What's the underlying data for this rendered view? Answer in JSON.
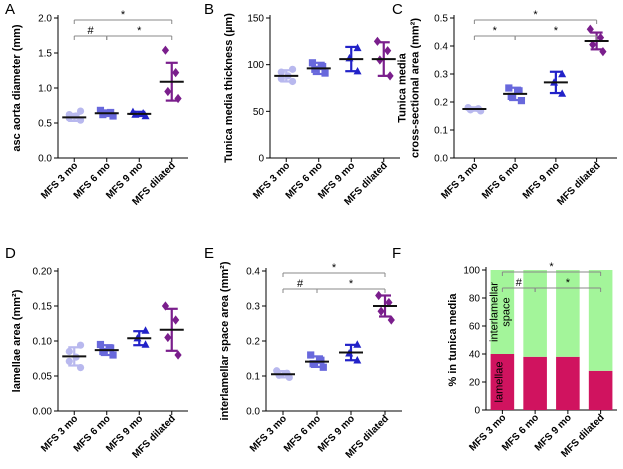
{
  "figure": {
    "categories": [
      "MFS 3 mo",
      "MFS 6 mo",
      "MFS 9 mo",
      "MFS dilated"
    ],
    "colors": [
      "#b8b8ee",
      "#6868dc",
      "#2222c8",
      "#7a1e8c"
    ],
    "markers": [
      "circle",
      "square",
      "triangle-up",
      "diamond"
    ]
  },
  "chart_data": [
    {
      "panel_letter": "A",
      "type": "scatter",
      "title": "",
      "ylabel": "asc aorta diameter (mm)",
      "ylim": [
        0,
        2.0
      ],
      "yticks": [
        0,
        0.5,
        1.0,
        1.5,
        2.0
      ],
      "ytick_labels": [
        "0.0",
        "0.5",
        "1.0",
        "1.5",
        "2.0"
      ],
      "series": [
        {
          "name": "MFS 3 mo",
          "points": [
            0.54,
            0.57,
            0.6,
            0.62,
            0.67
          ],
          "mean": 0.58,
          "sd": 0.05
        },
        {
          "name": "MFS 6 mo",
          "points": [
            0.6,
            0.62,
            0.65,
            0.68
          ],
          "mean": 0.64,
          "sd": 0.04
        },
        {
          "name": "MFS 9 mo",
          "points": [
            0.6,
            0.62,
            0.64,
            0.66
          ],
          "mean": 0.63,
          "sd": 0.03
        },
        {
          "name": "MFS dilated",
          "points": [
            0.85,
            0.95,
            1.22,
            1.54
          ],
          "mean": 1.09,
          "sd": 0.27
        }
      ],
      "significance": [
        {
          "from": 0,
          "to": 3,
          "label": "*"
        },
        {
          "from": 0,
          "to": 1,
          "label": "#"
        },
        {
          "from": 1,
          "to": 3,
          "label": "*"
        }
      ]
    },
    {
      "panel_letter": "B",
      "type": "scatter",
      "title": "",
      "ylabel": "Tunica media thickness (µm)",
      "ylim": [
        0,
        150
      ],
      "yticks": [
        0,
        50,
        100,
        150
      ],
      "ytick_labels": [
        "0",
        "50",
        "100",
        "150"
      ],
      "series": [
        {
          "name": "MFS 3 mo",
          "points": [
            82,
            85,
            88,
            92,
            95
          ],
          "mean": 88,
          "sd": 6
        },
        {
          "name": "MFS 6 mo",
          "points": [
            91,
            95,
            98,
            102
          ],
          "mean": 96,
          "sd": 6
        },
        {
          "name": "MFS 9 mo",
          "points": [
            93,
            107,
            118
          ],
          "mean": 106,
          "sd": 13
        },
        {
          "name": "MFS dilated",
          "points": [
            88,
            105,
            115,
            125
          ],
          "mean": 106,
          "sd": 18
        }
      ],
      "significance": []
    },
    {
      "panel_letter": "C",
      "type": "scatter",
      "title": "",
      "ylabel": "Tunica media cross-sectional area (mm²)",
      "ylabel_lines": [
        "Tunica media",
        "cross-sectional area (mm²)"
      ],
      "ylim": [
        0,
        0.5
      ],
      "yticks": [
        0,
        0.1,
        0.2,
        0.3,
        0.4,
        0.5
      ],
      "ytick_labels": [
        "0.0",
        "0.1",
        "0.2",
        "0.3",
        "0.4",
        "0.5"
      ],
      "series": [
        {
          "name": "MFS 3 mo",
          "points": [
            0.168,
            0.172,
            0.176,
            0.18
          ],
          "mean": 0.175,
          "sd": 0.006
        },
        {
          "name": "MFS 6 mo",
          "points": [
            0.205,
            0.22,
            0.24,
            0.25
          ],
          "mean": 0.229,
          "sd": 0.022
        },
        {
          "name": "MFS 9 mo",
          "points": [
            0.23,
            0.27,
            0.3
          ],
          "mean": 0.27,
          "sd": 0.038
        },
        {
          "name": "MFS dilated",
          "points": [
            0.38,
            0.405,
            0.43,
            0.46
          ],
          "mean": 0.418,
          "sd": 0.03
        }
      ],
      "significance": [
        {
          "from": 0,
          "to": 3,
          "label": "*"
        },
        {
          "from": 0,
          "to": 1,
          "label": "*"
        },
        {
          "from": 1,
          "to": 3,
          "label": "*"
        }
      ]
    },
    {
      "panel_letter": "D",
      "type": "scatter",
      "title": "",
      "ylabel": "lamellae area (mm²)",
      "ylim": [
        0,
        0.2
      ],
      "yticks": [
        0,
        0.05,
        0.1,
        0.15,
        0.2
      ],
      "ytick_labels": [
        "0.00",
        "0.05",
        "0.10",
        "0.15",
        "0.20"
      ],
      "series": [
        {
          "name": "MFS 3 mo",
          "points": [
            0.062,
            0.071,
            0.077,
            0.085,
            0.094
          ],
          "mean": 0.078,
          "sd": 0.013
        },
        {
          "name": "MFS 6 mo",
          "points": [
            0.08,
            0.085,
            0.09,
            0.095
          ],
          "mean": 0.087,
          "sd": 0.007
        },
        {
          "name": "MFS 9 mo",
          "points": [
            0.095,
            0.104,
            0.115
          ],
          "mean": 0.104,
          "sd": 0.01
        },
        {
          "name": "MFS dilated",
          "points": [
            0.08,
            0.105,
            0.13,
            0.15
          ],
          "mean": 0.116,
          "sd": 0.03
        }
      ],
      "significance": []
    },
    {
      "panel_letter": "E",
      "type": "scatter",
      "title": "",
      "ylabel": "interlamellar space area (mm²)",
      "ylim": [
        0,
        0.4
      ],
      "yticks": [
        0,
        0.1,
        0.2,
        0.3,
        0.4
      ],
      "ytick_labels": [
        "0.0",
        "0.1",
        "0.2",
        "0.3",
        "0.4"
      ],
      "series": [
        {
          "name": "MFS 3 mo",
          "points": [
            0.096,
            0.102,
            0.108,
            0.115
          ],
          "mean": 0.105,
          "sd": 0.009
        },
        {
          "name": "MFS 6 mo",
          "points": [
            0.125,
            0.135,
            0.145,
            0.16
          ],
          "mean": 0.141,
          "sd": 0.015
        },
        {
          "name": "MFS 9 mo",
          "points": [
            0.145,
            0.165,
            0.19
          ],
          "mean": 0.167,
          "sd": 0.022
        },
        {
          "name": "MFS dilated",
          "points": [
            0.26,
            0.285,
            0.31,
            0.33
          ],
          "mean": 0.3,
          "sd": 0.03
        }
      ],
      "significance": [
        {
          "from": 0,
          "to": 3,
          "label": "*"
        },
        {
          "from": 0,
          "to": 1,
          "label": "#"
        },
        {
          "from": 1,
          "to": 3,
          "label": "*"
        }
      ]
    },
    {
      "panel_letter": "F",
      "type": "bar",
      "stacked": true,
      "title": "",
      "ylabel": "% in tunica media",
      "ylim": [
        0,
        100
      ],
      "yticks": [
        0,
        20,
        40,
        60,
        80,
        100
      ],
      "ytick_labels": [
        "0",
        "20",
        "40",
        "60",
        "80",
        "100"
      ],
      "series": [
        {
          "name": "lamellae",
          "color": "#d0135f",
          "values": [
            40,
            38,
            38,
            28
          ]
        },
        {
          "name": "interlamellar space",
          "color": "#a3f59a",
          "values": [
            60,
            62,
            62,
            72
          ]
        }
      ],
      "inbar_labels": {
        "lamellae": "lamellae",
        "interlamellar": [
          "interlamellar",
          "space"
        ]
      },
      "significance": [
        {
          "from": 0,
          "to": 3,
          "label": "*"
        },
        {
          "from": 0,
          "to": 1,
          "label": "#"
        },
        {
          "from": 1,
          "to": 3,
          "label": "*"
        }
      ]
    }
  ]
}
